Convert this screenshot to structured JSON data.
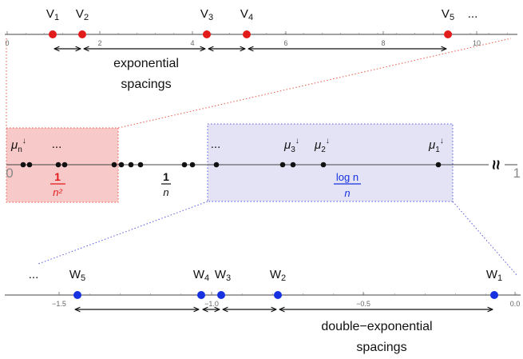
{
  "colors": {
    "red_point": "#e21b1b",
    "blue_point": "#1531e0",
    "black_point": "#111111",
    "red_region_fill": "#f7c9c9",
    "red_region_border": "#e8564a",
    "blue_region_fill": "#e3e3f5",
    "blue_region_border": "#5a5ae0",
    "axis": "#444444"
  },
  "top_axis": {
    "ticks": [
      "0",
      "2",
      "4",
      "6",
      "8",
      "10"
    ],
    "points": [
      "V1",
      "V2",
      "V3",
      "V4",
      "V5"
    ],
    "ellipsis": "...",
    "caption_line1": "exponential",
    "caption_line2": "spacings"
  },
  "middle_axis": {
    "left_end": "0",
    "right_end": "1",
    "break_symbol": "≈",
    "mu_labels": [
      {
        "base": "μ",
        "sub": "n",
        "sup": "↓"
      },
      {
        "base": "μ",
        "sub": "3",
        "sup": "↓"
      },
      {
        "base": "μ",
        "sub": "2",
        "sup": "↓"
      },
      {
        "base": "μ",
        "sub": "1",
        "sup": "↓"
      }
    ],
    "ellipsis_left": "...",
    "ellipsis_mid": "...",
    "frac_red": {
      "num": "1",
      "den": "n²"
    },
    "frac_black": {
      "num": "1",
      "den": "n"
    },
    "frac_blue": {
      "num": "log n",
      "den": "n"
    }
  },
  "bottom_axis": {
    "ticks": [
      "−1.5",
      "−1.0",
      "−0.5",
      "0.0"
    ],
    "points": [
      "W5",
      "W4",
      "W3",
      "W2",
      "W1"
    ],
    "ellipsis": "...",
    "caption_line1": "double−exponential",
    "caption_line2": "spacings"
  }
}
